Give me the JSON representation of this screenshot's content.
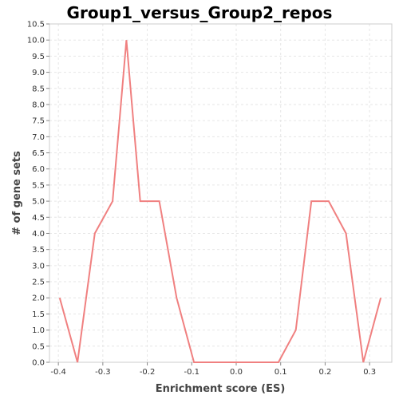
{
  "chart_data": {
    "type": "line",
    "title": "Group1_versus_Group2_repos",
    "xlabel": "Enrichment score (ES)",
    "ylabel": "# of gene sets",
    "xlim": [
      -0.42,
      0.35
    ],
    "ylim": [
      0.0,
      10.5
    ],
    "x_ticks": [
      "-0.4",
      "-0.3",
      "-0.2",
      "-0.1",
      "0.0",
      "0.1",
      "0.2",
      "0.3"
    ],
    "y_ticks": [
      "0.0",
      "0.5",
      "1.0",
      "1.5",
      "2.0",
      "2.5",
      "3.0",
      "3.5",
      "4.0",
      "4.5",
      "5.0",
      "5.5",
      "6.0",
      "6.5",
      "7.0",
      "7.5",
      "8.0",
      "8.5",
      "9.0",
      "9.5",
      "10.0",
      "10.5"
    ],
    "grid": true,
    "line_color": "#f08080",
    "series": [
      {
        "x": [
          -0.397,
          -0.357,
          -0.318,
          -0.278,
          -0.247,
          -0.216,
          -0.173,
          -0.134,
          -0.095,
          0.095,
          0.134,
          0.169,
          0.208,
          0.247,
          0.286,
          0.325
        ],
        "y": [
          2.0,
          0.0,
          4.0,
          5.0,
          10.0,
          5.0,
          5.0,
          2.0,
          0.0,
          0.0,
          1.0,
          5.0,
          5.0,
          4.0,
          0.0,
          2.0
        ]
      }
    ]
  }
}
